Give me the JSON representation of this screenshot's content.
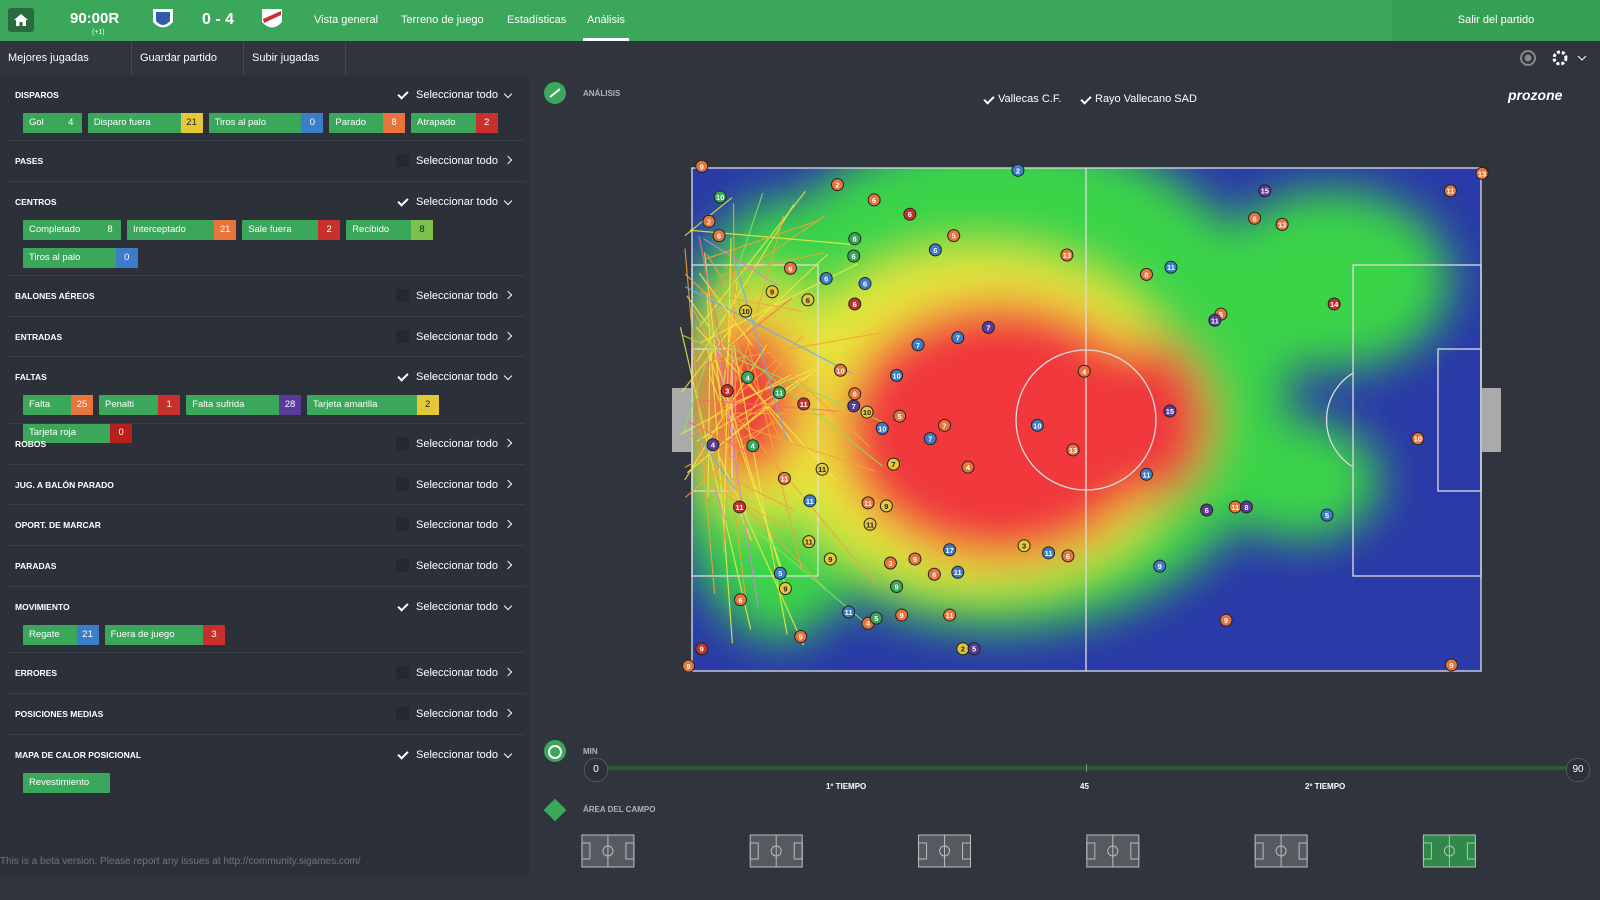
{
  "topbar": {
    "time": "90:00R",
    "added": "(+1)",
    "score": "0 - 4",
    "nav": [
      "Vista general",
      "Terreno de juego",
      "Estadísticas",
      "Análisis"
    ],
    "exit": "Salir del partido"
  },
  "toolbar": [
    "Mejores jugadas",
    "Guardar partido",
    "Subir jugadas"
  ],
  "sections": [
    {
      "title": "DISPAROS",
      "checked": true,
      "select": "Seleccionar todo",
      "items": [
        {
          "label": "Gol",
          "value": 4,
          "color": "#3aa75a"
        },
        {
          "label": "Disparo fuera",
          "value": 21,
          "color": "#e4c838"
        },
        {
          "label": "Tiros al palo",
          "value": 0,
          "color": "#3d7cc9"
        },
        {
          "label": "Parado",
          "value": 8,
          "color": "#e8743b"
        },
        {
          "label": "Atrapado",
          "value": 2,
          "color": "#c8302c"
        }
      ]
    },
    {
      "title": "PASES",
      "checked": false,
      "select": "Seleccionar todo",
      "items": []
    },
    {
      "title": "CENTROS",
      "checked": true,
      "select": "Seleccionar todo",
      "items": [
        {
          "label": "Completado",
          "value": 8,
          "color": "#3aa75a"
        },
        {
          "label": "Interceptado",
          "value": 21,
          "color": "#e8743b"
        },
        {
          "label": "Sale fuera",
          "value": 2,
          "color": "#c8302c"
        },
        {
          "label": "Recibido",
          "value": 8,
          "color": "#7cc24a"
        },
        {
          "label": "Tiros al palo",
          "value": 0,
          "color": "#3d7cc9"
        }
      ]
    },
    {
      "title": "BALONES AÉREOS",
      "checked": false,
      "select": "Seleccionar todo",
      "items": []
    },
    {
      "title": "ENTRADAS",
      "checked": false,
      "select": "Seleccionar todo",
      "items": []
    },
    {
      "title": "FALTAS",
      "checked": true,
      "select": "Seleccionar todo",
      "items": [
        {
          "label": "Falta",
          "value": 25,
          "color": "#e8743b"
        },
        {
          "label": "Penalti",
          "value": 1,
          "color": "#c8302c"
        },
        {
          "label": "Falta sufrida",
          "value": 28,
          "color": "#5a3b9a"
        },
        {
          "label": "Tarjeta amarilla",
          "value": 2,
          "color": "#e4c838"
        },
        {
          "label": "Tarjeta roja",
          "value": 0,
          "color": "#b8201c"
        }
      ]
    },
    {
      "title": "ROBOS",
      "checked": false,
      "select": "Seleccionar todo",
      "items": []
    },
    {
      "title": "JUG. A BALÓN PARADO",
      "checked": false,
      "select": "Seleccionar todo",
      "items": []
    },
    {
      "title": "OPORT. DE MARCAR",
      "checked": false,
      "select": "Seleccionar todo",
      "items": []
    },
    {
      "title": "PARADAS",
      "checked": false,
      "select": "Seleccionar todo",
      "items": []
    },
    {
      "title": "MOVIMIENTO",
      "checked": true,
      "select": "Seleccionar todo",
      "items": [
        {
          "label": "Regate",
          "value": 21,
          "color": "#3d7cc9"
        },
        {
          "label": "Fuera de juego",
          "value": 3,
          "color": "#c8302c"
        }
      ]
    },
    {
      "title": "ERRORES",
      "checked": false,
      "select": "Seleccionar todo",
      "items": []
    },
    {
      "title": "POSICIONES MEDIAS",
      "checked": false,
      "select": "Seleccionar todo",
      "items": []
    },
    {
      "title": "MAPA DE CALOR POSICIONAL",
      "checked": true,
      "select": "Seleccionar todo",
      "items": [
        {
          "label": "Revestimiento"
        }
      ]
    }
  ],
  "analysis": {
    "label": "ANÁLISIS",
    "teams": [
      "Vallecas C.F.",
      "Rayo Vallecano SAD"
    ],
    "brand": "prozone",
    "markers": [
      [
        9,
        "o"
      ],
      [
        10,
        "g"
      ],
      [
        2,
        "o"
      ],
      [
        6,
        "o"
      ],
      [
        2,
        "o"
      ],
      [
        6,
        "o"
      ],
      [
        6,
        "r"
      ],
      [
        6,
        "g"
      ],
      [
        6,
        "g"
      ],
      [
        5,
        "o"
      ],
      [
        6,
        "b"
      ],
      [
        13,
        "o"
      ],
      [
        2,
        "b"
      ],
      [
        15,
        "p"
      ],
      [
        6,
        "o"
      ],
      [
        13,
        "o"
      ],
      [
        11,
        "o"
      ],
      [
        13,
        "o"
      ],
      [
        11,
        "b"
      ],
      [
        8,
        "o"
      ],
      [
        6,
        "o"
      ],
      [
        9,
        "y"
      ],
      [
        6,
        "y"
      ],
      [
        6,
        "b"
      ],
      [
        6,
        "b"
      ],
      [
        6,
        "r"
      ],
      [
        10,
        "y"
      ],
      [
        5,
        "o"
      ],
      [
        11,
        "p"
      ],
      [
        14,
        "r"
      ],
      [
        7,
        "b"
      ],
      [
        7,
        "b"
      ],
      [
        7,
        "p"
      ],
      [
        10,
        "o"
      ],
      [
        10,
        "b"
      ],
      [
        4,
        "o"
      ],
      [
        15,
        "p"
      ],
      [
        3,
        "r"
      ],
      [
        4,
        "g"
      ],
      [
        11,
        "g"
      ],
      [
        11,
        "r"
      ],
      [
        6,
        "o"
      ],
      [
        7,
        "p"
      ],
      [
        10,
        "y"
      ],
      [
        10,
        "b"
      ],
      [
        5,
        "o"
      ],
      [
        7,
        "o"
      ],
      [
        7,
        "b"
      ],
      [
        10,
        "b"
      ],
      [
        13,
        "o"
      ],
      [
        4,
        "o"
      ],
      [
        10,
        "o"
      ],
      [
        4,
        "p"
      ],
      [
        4,
        "g"
      ],
      [
        11,
        "o"
      ],
      [
        11,
        "y"
      ],
      [
        7,
        "y"
      ],
      [
        11,
        "b"
      ],
      [
        11,
        "r"
      ],
      [
        11,
        "b"
      ],
      [
        11,
        "o"
      ],
      [
        9,
        "y"
      ],
      [
        11,
        "y"
      ],
      [
        6,
        "p"
      ],
      [
        11,
        "o"
      ],
      [
        8,
        "p"
      ],
      [
        5,
        "b"
      ],
      [
        17,
        "b"
      ],
      [
        3,
        "y"
      ],
      [
        11,
        "b"
      ],
      [
        6,
        "o"
      ],
      [
        9,
        "b"
      ],
      [
        11,
        "y"
      ],
      [
        9,
        "y"
      ],
      [
        5,
        "b"
      ],
      [
        9,
        "y"
      ],
      [
        3,
        "o"
      ],
      [
        9,
        "o"
      ],
      [
        6,
        "o"
      ],
      [
        11,
        "b"
      ],
      [
        9,
        "g"
      ],
      [
        6,
        "o"
      ],
      [
        11,
        "b"
      ],
      [
        4,
        "o"
      ],
      [
        5,
        "g"
      ],
      [
        9,
        "o"
      ],
      [
        11,
        "o"
      ],
      [
        9,
        "o"
      ],
      [
        9,
        "o"
      ],
      [
        9,
        "r"
      ],
      [
        9,
        "o"
      ],
      [
        2,
        "y"
      ],
      [
        5,
        "p"
      ],
      [
        9,
        "o"
      ]
    ],
    "marker_colors": {
      "o": "#e8743b",
      "g": "#3aa75a",
      "b": "#3d7cc9",
      "y": "#e4c838",
      "r": "#c8302c",
      "p": "#5a3b9a"
    }
  },
  "timeline": {
    "label": "MIN",
    "start": 0,
    "end": 90,
    "mid": 45,
    "halves": [
      "1º TIEMPO",
      "2º TIEMPO"
    ]
  },
  "area": {
    "label": "ÁREA DEL CAMPO"
  },
  "footer": "This is a beta version. Please report any issues at http://community.sigames.com/"
}
